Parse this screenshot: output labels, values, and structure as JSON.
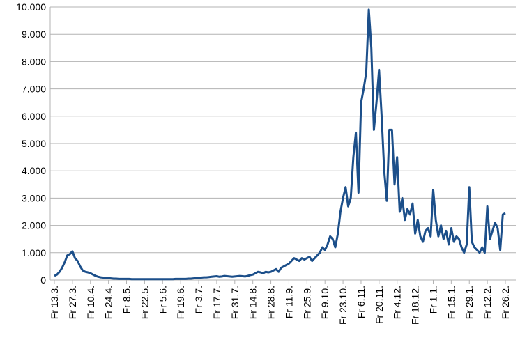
{
  "chart_data": {
    "type": "line",
    "categories": [
      "Fr 13.3.",
      null,
      null,
      null,
      null,
      null,
      null,
      "Fr 27.3.",
      null,
      null,
      null,
      null,
      null,
      null,
      "Fr 10.4.",
      null,
      null,
      null,
      null,
      null,
      null,
      "Fr 24.4.",
      null,
      null,
      null,
      null,
      null,
      null,
      "Fr 8.5.",
      null,
      null,
      null,
      null,
      null,
      null,
      "Fr 22.5.",
      null,
      null,
      null,
      null,
      null,
      null,
      "Fr 5.6.",
      null,
      null,
      null,
      null,
      null,
      null,
      "Fr 19.6.",
      null,
      null,
      null,
      null,
      null,
      null,
      "Fr 3.7.",
      null,
      null,
      null,
      null,
      null,
      null,
      "Fr 17.7.",
      null,
      null,
      null,
      null,
      null,
      null,
      "Fr 31.7.",
      null,
      null,
      null,
      null,
      null,
      null,
      "Fr 14.8.",
      null,
      null,
      null,
      null,
      null,
      null,
      "Fr 28.8.",
      null,
      null,
      null,
      null,
      null,
      null,
      "Fr 11.9.",
      null,
      null,
      null,
      null,
      null,
      null,
      "Fr 25.9.",
      null,
      null,
      null,
      null,
      null,
      null,
      "Fr 9.10.",
      null,
      null,
      null,
      null,
      null,
      null,
      "Fr 23.10.",
      null,
      null,
      null,
      null,
      null,
      null,
      "Fr 6.11.",
      null,
      null,
      null,
      null,
      null,
      null,
      "Fr 20.11.",
      null,
      null,
      null,
      null,
      null,
      null,
      "Fr 4.12.",
      null,
      null,
      null,
      null,
      null,
      null,
      "Fr 18.12.",
      null,
      null,
      null,
      null,
      null,
      null,
      "Fr 1.1.",
      null,
      null,
      null,
      null,
      null,
      null,
      "Fr 15.1.",
      null,
      null,
      null,
      null,
      null,
      null,
      "Fr 29.1.",
      null,
      null,
      null,
      null,
      null,
      null,
      "Fr 12.2.",
      null,
      null,
      null,
      null,
      null,
      null,
      "Fr 26.2."
    ],
    "series": [
      {
        "color": "#1c4f8a",
        "values": [
          150,
          200,
          300,
          450,
          650,
          900,
          950,
          1050,
          800,
          700,
          500,
          350,
          300,
          280,
          250,
          200,
          150,
          120,
          100,
          90,
          80,
          70,
          60,
          50,
          50,
          40,
          40,
          40,
          40,
          40,
          30,
          30,
          30,
          30,
          30,
          30,
          30,
          30,
          30,
          30,
          30,
          30,
          30,
          30,
          30,
          30,
          30,
          40,
          40,
          40,
          40,
          40,
          50,
          50,
          60,
          70,
          80,
          90,
          100,
          100,
          110,
          120,
          130,
          140,
          120,
          130,
          150,
          140,
          130,
          120,
          130,
          140,
          150,
          140,
          130,
          150,
          180,
          200,
          250,
          300,
          280,
          250,
          300,
          280,
          300,
          350,
          400,
          300,
          450,
          500,
          550,
          600,
          700,
          800,
          750,
          700,
          800,
          750,
          800,
          850,
          700,
          800,
          900,
          1000,
          1200,
          1100,
          1300,
          1600,
          1500,
          1200,
          1700,
          2500,
          3000,
          3400,
          2700,
          3000,
          4500,
          5400,
          3200,
          6500,
          7000,
          7600,
          9900,
          8500,
          5500,
          6500,
          7700,
          6000,
          4000,
          2900,
          5500,
          5500,
          3500,
          4500,
          2500,
          3000,
          2200,
          2600,
          2400,
          2800,
          1700,
          2200,
          1600,
          1400,
          1800,
          1900,
          1600,
          3300,
          2200,
          1600,
          2000,
          1500,
          1800,
          1300,
          1900,
          1400,
          1600,
          1500,
          1200,
          1000,
          1300,
          3400,
          1400,
          1200,
          1100,
          1000,
          1200,
          1000,
          2700,
          1500,
          1800,
          2100,
          1900,
          1100,
          2400,
          2450
        ]
      }
    ],
    "ylim": [
      0,
      10000
    ],
    "yticks": [
      0,
      {
        "value": 1000,
        "label": "1.000"
      },
      {
        "value": 2000,
        "label": "2.000"
      },
      {
        "value": 3000,
        "label": "3.000"
      },
      {
        "value": 4000,
        "label": "4.000"
      },
      {
        "value": 5000,
        "label": "5.000"
      },
      {
        "value": 6000,
        "label": "6.000"
      },
      {
        "value": 7000,
        "label": "7.000"
      },
      {
        "value": 8000,
        "label": "8.000"
      },
      {
        "value": 9000,
        "label": "9.000"
      },
      {
        "value": 10000,
        "label": "10.000"
      }
    ],
    "grid": true
  }
}
